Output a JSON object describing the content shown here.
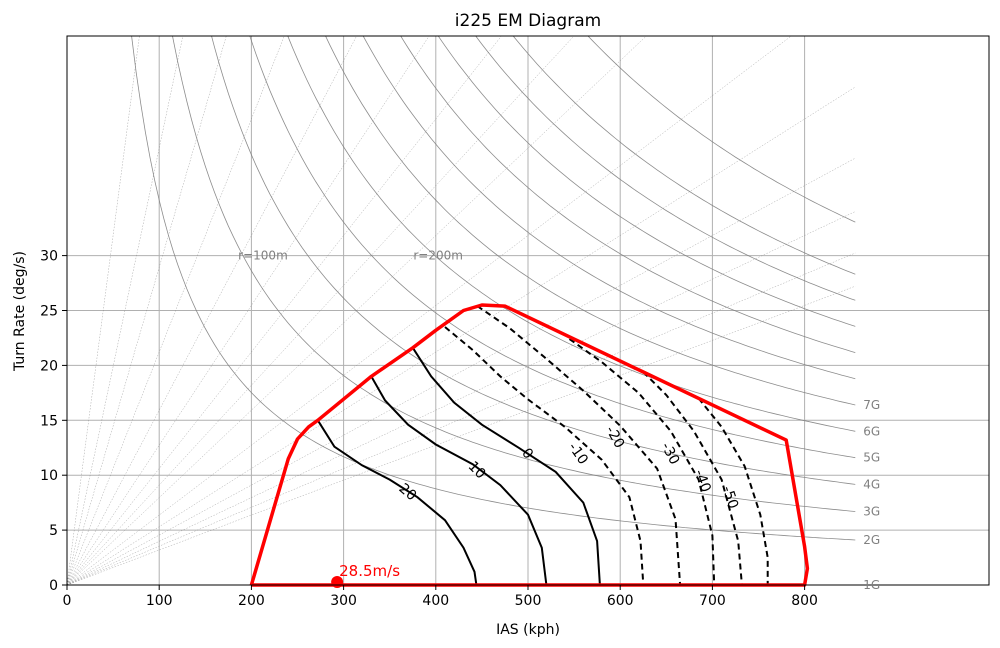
{
  "chart_data": {
    "type": "line",
    "title": "i225 EM Diagram",
    "xlabel": "IAS (kph)",
    "ylabel": "Turn Rate (deg/s)",
    "xlim": [
      0,
      1000
    ],
    "ylim": [
      0,
      50
    ],
    "x_ticks": [
      0,
      100,
      200,
      300,
      400,
      500,
      600,
      700,
      800
    ],
    "y_ticks": [
      0,
      5,
      10,
      15,
      20,
      25,
      30
    ],
    "grid": true,
    "colors": {
      "envelope": "#ff0000",
      "contour": "#000000",
      "gridline": "#b0b0b0",
      "reference": "#808080"
    },
    "g_lines": [
      {
        "label": "1G",
        "g": 1
      },
      {
        "label": "2G",
        "g": 2
      },
      {
        "label": "3G",
        "g": 3
      },
      {
        "label": "4G",
        "g": 4
      },
      {
        "label": "5G",
        "g": 5
      },
      {
        "label": "6G",
        "g": 6
      },
      {
        "label": "7G",
        "g": 7
      }
    ],
    "radius_labels": [
      {
        "label": "r=100m",
        "x": 190,
        "y": 30
      },
      {
        "label": "r=200m",
        "x": 380,
        "y": 30
      }
    ],
    "radius_curves_m": [
      25,
      40,
      55,
      75,
      100,
      125,
      150,
      175,
      200,
      250,
      300,
      350,
      400,
      450,
      500
    ],
    "envelope": [
      [
        200,
        0
      ],
      [
        240,
        11.5
      ],
      [
        250,
        13.3
      ],
      [
        262,
        14.4
      ],
      [
        272,
        15.0
      ],
      [
        330,
        19.0
      ],
      [
        375,
        21.6
      ],
      [
        400,
        23.2
      ],
      [
        430,
        25.0
      ],
      [
        450,
        25.5
      ],
      [
        475,
        25.4
      ],
      [
        625,
        19.4
      ],
      [
        780,
        13.2
      ],
      [
        800,
        3.5
      ],
      [
        803,
        1.5
      ],
      [
        800,
        0
      ],
      [
        200,
        0
      ]
    ],
    "ps_contours": [
      {
        "label": "20",
        "dashed": false,
        "label_pos": [
          370,
          8.5
        ],
        "label_rot": 40,
        "points": [
          [
            272,
            15.0
          ],
          [
            290,
            12.6
          ],
          [
            320,
            10.9
          ],
          [
            350,
            9.6
          ],
          [
            380,
            8.0
          ],
          [
            410,
            5.9
          ],
          [
            430,
            3.4
          ],
          [
            442,
            1.2
          ],
          [
            444,
            0
          ]
        ]
      },
      {
        "label": "10",
        "dashed": false,
        "label_pos": [
          445,
          10.5
        ],
        "label_rot": 45,
        "points": [
          [
            330,
            19.0
          ],
          [
            345,
            16.8
          ],
          [
            370,
            14.6
          ],
          [
            400,
            12.8
          ],
          [
            440,
            11.0
          ],
          [
            470,
            9.1
          ],
          [
            500,
            6.4
          ],
          [
            515,
            3.4
          ],
          [
            520,
            0
          ]
        ]
      },
      {
        "label": "0",
        "dashed": false,
        "label_pos": [
          500,
          12.0
        ],
        "label_rot": 50,
        "points": [
          [
            375,
            21.6
          ],
          [
            395,
            19.0
          ],
          [
            420,
            16.6
          ],
          [
            450,
            14.6
          ],
          [
            490,
            12.5
          ],
          [
            530,
            10.3
          ],
          [
            560,
            7.5
          ],
          [
            575,
            4.0
          ],
          [
            578,
            0
          ]
        ]
      },
      {
        "label": "-10",
        "dashed": true,
        "label_pos": [
          555,
          12.0
        ],
        "label_rot": 55,
        "points": [
          [
            410,
            23.5
          ],
          [
            440,
            21.4
          ],
          [
            470,
            19.0
          ],
          [
            500,
            16.9
          ],
          [
            540,
            14.4
          ],
          [
            580,
            11.4
          ],
          [
            610,
            8.0
          ],
          [
            622,
            4.0
          ],
          [
            625,
            0
          ]
        ]
      },
      {
        "label": "-20",
        "dashed": true,
        "label_pos": [
          595,
          13.5
        ],
        "label_rot": 60,
        "points": [
          [
            445,
            25.4
          ],
          [
            480,
            23.4
          ],
          [
            520,
            20.6
          ],
          [
            560,
            17.7
          ],
          [
            600,
            14.5
          ],
          [
            640,
            10.6
          ],
          [
            660,
            6.0
          ],
          [
            665,
            0
          ]
        ]
      },
      {
        "label": "-30",
        "dashed": true,
        "label_pos": [
          655,
          12.0
        ],
        "label_rot": 62,
        "points": [
          [
            545,
            22.4
          ],
          [
            580,
            20.3
          ],
          [
            620,
            17.5
          ],
          [
            655,
            14.0
          ],
          [
            685,
            9.6
          ],
          [
            700,
            4.5
          ],
          [
            702,
            0
          ]
        ]
      },
      {
        "label": "-40",
        "dashed": true,
        "label_pos": [
          690,
          9.5
        ],
        "label_rot": 70,
        "points": [
          [
            625,
            19.4
          ],
          [
            650,
            17.3
          ],
          [
            680,
            14.0
          ],
          [
            710,
            9.6
          ],
          [
            728,
            4.0
          ],
          [
            732,
            0
          ]
        ]
      },
      {
        "label": "-50",
        "dashed": true,
        "label_pos": [
          720,
          8.0
        ],
        "label_rot": 72,
        "points": [
          [
            685,
            17.0
          ],
          [
            710,
            14.4
          ],
          [
            735,
            10.8
          ],
          [
            752,
            6.4
          ],
          [
            760,
            2.5
          ],
          [
            760,
            0
          ]
        ]
      }
    ],
    "annotations": [
      {
        "label": "28.5m/s",
        "x": 293,
        "y": 0.3,
        "color": "#ff0000"
      }
    ]
  }
}
